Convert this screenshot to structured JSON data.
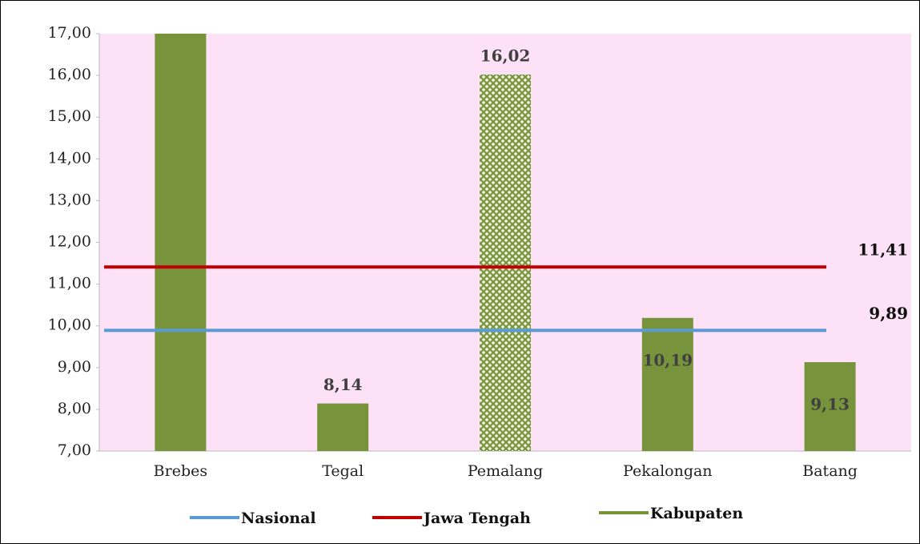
{
  "chart_data": {
    "type": "bar",
    "categories": [
      "Brebes",
      "Tegal",
      "Pemalang",
      "Pekalongan",
      "Batang"
    ],
    "series": [
      {
        "name": "Kabupaten",
        "color": "#77933c",
        "values": [
          17.5,
          8.14,
          16.02,
          10.19,
          9.13
        ],
        "value_labels": [
          null,
          "8,14",
          "16,02",
          "10,19",
          "9,13"
        ]
      }
    ],
    "hatched_category": "Pemalang",
    "reference_lines": [
      {
        "name": "Nasional",
        "color": "#5b9bd5",
        "value": 9.89,
        "value_label": "9,89"
      },
      {
        "name": "Jawa Tengah",
        "color": "#c00000",
        "value": 11.41,
        "value_label": "11,41"
      }
    ],
    "legend_order": [
      "Nasional",
      "Jawa Tengah",
      "Kabupaten"
    ],
    "plot_background": "#fde1f6",
    "ylim": [
      7,
      17
    ],
    "yticks": [
      {
        "value": 7,
        "label": "7,00"
      },
      {
        "value": 8,
        "label": "8,00"
      },
      {
        "value": 9,
        "label": "9,00"
      },
      {
        "value": 10,
        "label": "10,00"
      },
      {
        "value": 11,
        "label": "11,00"
      },
      {
        "value": 12,
        "label": "12,00"
      },
      {
        "value": 13,
        "label": "13,00"
      },
      {
        "value": 14,
        "label": "14,00"
      },
      {
        "value": 15,
        "label": "15,00"
      },
      {
        "value": 16,
        "label": "16,00"
      },
      {
        "value": 17,
        "label": "17,00"
      }
    ],
    "grid": false
  }
}
